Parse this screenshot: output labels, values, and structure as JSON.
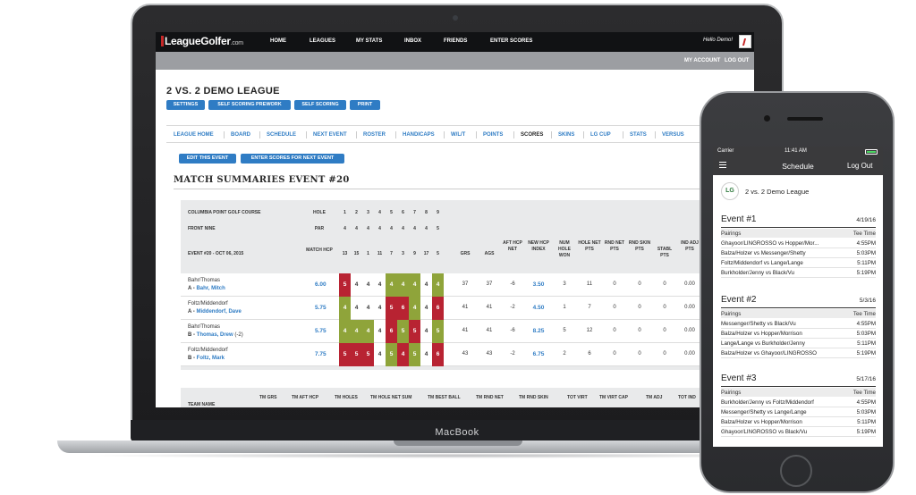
{
  "laptop": {
    "brand_label": "MacBook",
    "site": {
      "logo_text": "LeagueGolfer",
      "logo_suffix": ".com",
      "nav": [
        "HOME",
        "LEAGUES",
        "MY STATS",
        "INBOX",
        "FRIENDS",
        "ENTER SCORES"
      ],
      "greeting": "Hello Demo!",
      "account_links": [
        "MY ACCOUNT",
        "LOG OUT"
      ]
    },
    "league_title": "2 VS. 2 DEMO LEAGUE",
    "action_buttons": [
      "SETTINGS",
      "SELF SCORING PREWORK",
      "SELF SCORING",
      "PRINT"
    ],
    "tabs": [
      "LEAGUE HOME",
      "BOARD",
      "SCHEDULE",
      "NEXT EVENT",
      "ROSTER",
      "HANDICAPS",
      "W/L/T",
      "POINTS",
      "SCORES",
      "SKINS",
      "LG CUP",
      "STATS",
      "VERSUS"
    ],
    "active_tab": "SCORES",
    "event_buttons": [
      "EDIT THIS EVENT",
      "ENTER SCORES FOR NEXT EVENT"
    ],
    "section_title": "MATCH SUMMARIES EVENT #20",
    "scorecard": {
      "course": "COLUMBIA POINT GOLF COURSE",
      "nine": "FRONT NINE",
      "event_label": "EVENT #20 - OCT 06, 2015",
      "hole_label": "HOLE",
      "par_label": "PAR",
      "match_hcp_label": "MATCH HCP",
      "holes": [
        "1",
        "2",
        "3",
        "4",
        "5",
        "6",
        "7",
        "8",
        "9"
      ],
      "pars": [
        "4",
        "4",
        "4",
        "4",
        "4",
        "4",
        "4",
        "4",
        "5"
      ],
      "hcp_row": [
        "13",
        "15",
        "1",
        "11",
        "7",
        "3",
        "9",
        "17",
        "5"
      ],
      "stat_headers": [
        "GRS",
        "AGS",
        "AFT HCP NET",
        "NEW HCP INDEX",
        "NUM HOLE WON",
        "HOLE NET PTS",
        "RND NET PTS",
        "RND SKIN PTS",
        "STABL PTS",
        "IND ADJ PTS"
      ],
      "rows": [
        {
          "team": "Bahr/Thomas",
          "flight": "A",
          "player": "Bahr, Mitch",
          "extra": "",
          "hcp": "6.00",
          "scores": [
            "5",
            "4",
            "4",
            "4",
            "4",
            "4",
            "4",
            "4",
            "4"
          ],
          "colors": [
            "r",
            "w",
            "w",
            "w",
            "g",
            "g",
            "g",
            "w",
            "g"
          ],
          "stats": [
            "37",
            "37",
            "-6",
            "3.50",
            "3",
            "11",
            "0",
            "0",
            "0",
            "0.00"
          ]
        },
        {
          "team": "Foltz/Middendorf",
          "flight": "A",
          "player": "Middendorf, Dave",
          "extra": "",
          "hcp": "5.75",
          "scores": [
            "4",
            "4",
            "4",
            "4",
            "5",
            "6",
            "4",
            "4",
            "6"
          ],
          "colors": [
            "g",
            "w",
            "w",
            "w",
            "r",
            "r",
            "g",
            "w",
            "r"
          ],
          "stats": [
            "41",
            "41",
            "-2",
            "4.50",
            "1",
            "7",
            "0",
            "0",
            "0",
            "0.00"
          ]
        },
        {
          "team": "Bahr/Thomas",
          "flight": "B",
          "player": "Thomas, Drew",
          "extra": "(-2)",
          "hcp": "5.75",
          "scores": [
            "4",
            "4",
            "4",
            "4",
            "6",
            "5",
            "5",
            "4",
            "5"
          ],
          "colors": [
            "g",
            "g",
            "g",
            "w",
            "r",
            "g",
            "r",
            "w",
            "g"
          ],
          "stats": [
            "41",
            "41",
            "-6",
            "8.25",
            "5",
            "12",
            "0",
            "0",
            "0",
            "0.00"
          ]
        },
        {
          "team": "Foltz/Middendorf",
          "flight": "B",
          "player": "Foltz, Mark",
          "extra": "",
          "hcp": "7.75",
          "scores": [
            "5",
            "5",
            "5",
            "4",
            "5",
            "4",
            "5",
            "4",
            "6"
          ],
          "colors": [
            "r",
            "r",
            "r",
            "w",
            "g",
            "r",
            "g",
            "w",
            "r"
          ],
          "stats": [
            "43",
            "43",
            "-2",
            "6.75",
            "2",
            "6",
            "0",
            "0",
            "0",
            "0.00"
          ]
        }
      ]
    },
    "team_headers": [
      "TEAM NAME",
      "TM GRS",
      "TM AFT HCP",
      "TM HOLES",
      "TM HOLE NET SUM",
      "TM BEST BALL",
      "TM RND NET",
      "TM RND SKIN",
      "TOT VIRT",
      "TM VIRT CAP",
      "TM ADJ",
      "TOT IND"
    ]
  },
  "phone": {
    "status": {
      "carrier": "Carrier",
      "time": "11:41 AM"
    },
    "app_title": "Schedule",
    "logout_label": "Log Out",
    "league_logo": "LG",
    "league_name": "2 vs. 2 Demo League",
    "pairings_label": "Pairings",
    "tee_time_label": "Tee Time",
    "events": [
      {
        "title": "Event #1",
        "date": "4/19/16",
        "pairings": [
          {
            "pair": "Ghayoor/LINGROSSO vs Hopper/Mor...",
            "time": "4:55PM"
          },
          {
            "pair": "Balza/Holzer vs Messenger/Shetty",
            "time": "5:03PM"
          },
          {
            "pair": "Foltz/Middendorf vs Lange/Lange",
            "time": "5:11PM"
          },
          {
            "pair": "Burkholder/Jenny vs Black/Vu",
            "time": "5:19PM"
          }
        ]
      },
      {
        "title": "Event #2",
        "date": "5/3/16",
        "pairings": [
          {
            "pair": "Messenger/Shetty vs Black/Vu",
            "time": "4:55PM"
          },
          {
            "pair": "Balza/Holzer vs Hopper/Morrison",
            "time": "5:03PM"
          },
          {
            "pair": "Lange/Lange vs Burkholder/Jenny",
            "time": "5:11PM"
          },
          {
            "pair": "Balza/Holzer vs Ghayoor/LINGROSSO",
            "time": "5:19PM"
          }
        ]
      },
      {
        "title": "Event #3",
        "date": "5/17/16",
        "pairings": [
          {
            "pair": "Burkholder/Jenny vs Foltz/Middendorf",
            "time": "4:55PM"
          },
          {
            "pair": "Messenger/Shetty vs Lange/Lange",
            "time": "5:03PM"
          },
          {
            "pair": "Balza/Holzer vs Hopper/Morrison",
            "time": "5:11PM"
          },
          {
            "pair": "Ghayoor/LINGROSSO vs Black/Vu",
            "time": "5:19PM"
          }
        ]
      }
    ]
  },
  "colors": {
    "accent": "#2f7cc4",
    "green": "#8fa43a",
    "red": "#b82332",
    "nav": "#111214"
  }
}
